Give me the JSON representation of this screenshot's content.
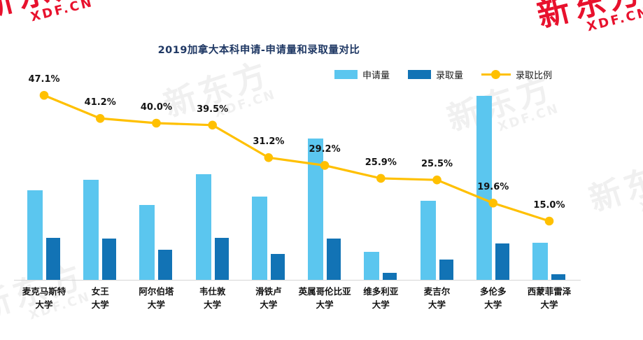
{
  "watermark": {
    "brand": "新东方",
    "site": "XDF.CN"
  },
  "chart_data": {
    "type": "bar",
    "subtype": "grouped bars with overlaid line on hidden percent axis",
    "title": "2019加拿大本科申请-申请量和录取量对比",
    "categories": [
      "麦克马斯特大学",
      "女王大学",
      "阿尔伯塔大学",
      "韦仕敦大学",
      "滑铁卢大学",
      "英属哥伦比亚大学",
      "维多利亚大学",
      "麦吉尔大学",
      "多伦多大学",
      "西蒙菲雷泽大学"
    ],
    "category_lines": [
      [
        "麦克马斯特",
        "大学"
      ],
      [
        "女王",
        "大学"
      ],
      [
        "阿尔伯塔",
        "大学"
      ],
      [
        "韦仕敦",
        "大学"
      ],
      [
        "滑铁卢",
        "大学"
      ],
      [
        "英属哥伦比亚",
        "大学"
      ],
      [
        "维多利亚",
        "大学"
      ],
      [
        "麦吉尔",
        "大学"
      ],
      [
        "多伦多",
        "大学"
      ],
      [
        "西蒙菲雷泽",
        "大学"
      ]
    ],
    "axes": {
      "y_left_visible": false,
      "y_right_visible": false,
      "gridlines": false,
      "note": "no numeric axis shown; bar values are relative estimates from pixel heights"
    },
    "legend": {
      "position": "top-right",
      "items": [
        "申请量",
        "录取量",
        "录取比例"
      ]
    },
    "series": [
      {
        "name": "申请量",
        "type": "bar",
        "color": "#5BC6EF",
        "values_relative": [
          128,
          143,
          107,
          151,
          119,
          202,
          40,
          113,
          263,
          53
        ]
      },
      {
        "name": "录取量",
        "type": "bar",
        "color": "#1273B5",
        "values_relative": [
          60,
          59,
          43,
          60,
          37,
          59,
          10,
          29,
          52,
          8
        ]
      },
      {
        "name": "录取比例",
        "type": "line",
        "color": "#FFC000",
        "values_percent": [
          47.1,
          41.2,
          40.0,
          39.5,
          31.2,
          29.2,
          25.9,
          25.5,
          19.6,
          15.0
        ],
        "labels": [
          "47.1%",
          "41.2%",
          "40.0%",
          "39.5%",
          "31.2%",
          "29.2%",
          "25.9%",
          "25.5%",
          "19.6%",
          "15.0%"
        ]
      }
    ]
  }
}
